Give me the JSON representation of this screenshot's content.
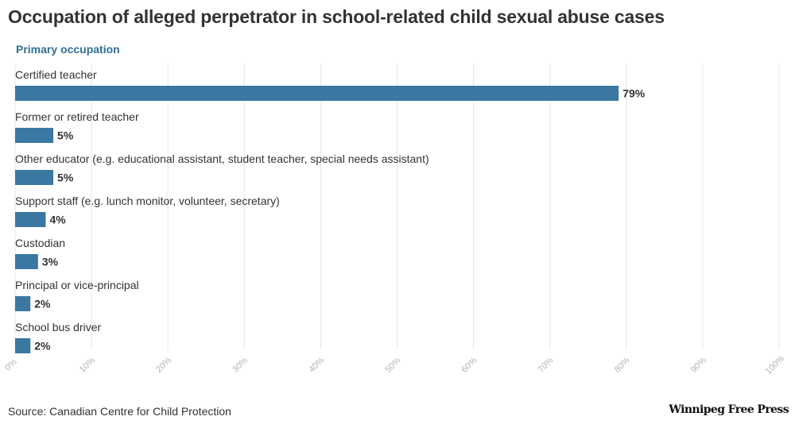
{
  "title": "Occupation of alleged perpetrator in school-related child sexual abuse cases",
  "subtitle": "Primary occupation",
  "source": "Source: Canadian Centre for Child Protection",
  "logo_text": "Winnipeg Free Press",
  "colors": {
    "bar": "#3a77a1",
    "grid": "#e6e6e6",
    "subtitle": "#2f6f95",
    "tick": "#b3b3b3"
  },
  "chart_data": {
    "type": "bar",
    "orientation": "horizontal",
    "categories": [
      "Certified teacher",
      "Former or retired teacher",
      "Other educator (e.g. educational assistant, student teacher, special needs assistant)",
      "Support staff (e.g. lunch monitor, volunteer, secretary)",
      "Custodian",
      "Principal or vice-principal",
      "School bus driver"
    ],
    "values": [
      79,
      5,
      5,
      4,
      3,
      2,
      2
    ],
    "value_labels": [
      "79%",
      "5%",
      "5%",
      "4%",
      "3%",
      "2%",
      "2%"
    ],
    "xlim": [
      0,
      100
    ],
    "xticks": [
      0,
      10,
      20,
      30,
      40,
      50,
      60,
      70,
      80,
      90,
      100
    ],
    "xtick_labels": [
      "0%",
      "10%",
      "20%",
      "30%",
      "40%",
      "50%",
      "60%",
      "70%",
      "80%",
      "90%",
      "100%"
    ],
    "grid": true,
    "title": "Occupation of alleged perpetrator in school-related child sexual abuse cases",
    "ylabel": "Primary occupation",
    "xlabel": ""
  }
}
